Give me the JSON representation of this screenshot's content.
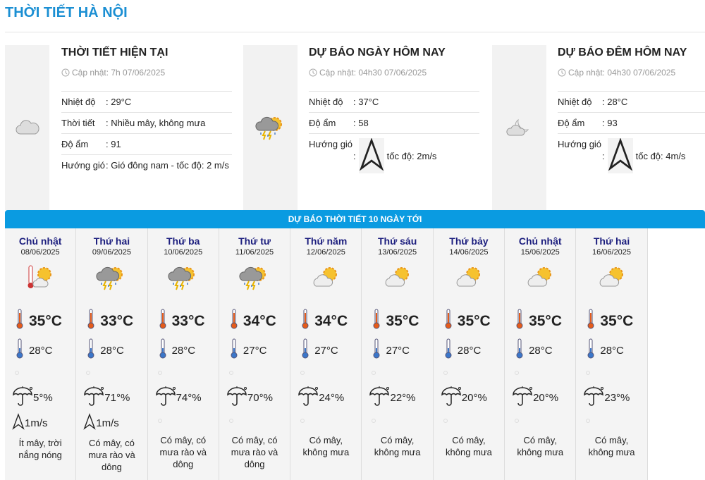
{
  "title": "THỜI TIẾT HÀ NỘI",
  "panels": [
    {
      "heading": "THỜI TIẾT HIỆN TẠI",
      "update": "Cập nhật: 7h 07/06/2025",
      "icon": "cloudy-icon",
      "rows": [
        {
          "k": "Nhiệt độ",
          "v": ": 29°C"
        },
        {
          "k": "Thời tiết",
          "v": ": Nhiều mây, không mưa"
        },
        {
          "k": "Độ ẩm",
          "v": ": 91"
        },
        {
          "k": "Hướng gió",
          "v": ": Gió đông nam - tốc độ: 2 m/s"
        }
      ]
    },
    {
      "heading": "DỰ BÁO NGÀY HÔM NAY",
      "update": "Cập nhật: 04h30 07/06/2025",
      "icon": "thunderstorm-icon",
      "rows": [
        {
          "k": "Nhiệt độ",
          "v": ": 37°C"
        },
        {
          "k": "Độ ẩm",
          "v": ": 58"
        },
        {
          "k": "Hướng gió",
          "v": ":",
          "speed": "tốc độ: 2m/s"
        }
      ]
    },
    {
      "heading": "DỰ BÁO ĐÊM HÔM NAY",
      "update": "Cập nhật: 04h30 07/06/2025",
      "icon": "night-cloudy-icon",
      "rows": [
        {
          "k": "Nhiệt độ",
          "v": ": 28°C"
        },
        {
          "k": "Độ ẩm",
          "v": ": 93"
        },
        {
          "k": "Hướng gió",
          "v": ":",
          "speed": "tốc độ: 4m/s"
        }
      ]
    }
  ],
  "forecast_title": "DỰ BÁO THỜI TIẾT 10 NGÀY TỚI",
  "days": [
    {
      "name": "Chủ nhật",
      "date": "08/06/2025",
      "icon": "hot-sun-icon",
      "hi": "35°C",
      "lo": "28°C",
      "rain": "5°%",
      "wind": "1m/s",
      "desc": "Ít mây, trời nắng nóng"
    },
    {
      "name": "Thứ hai",
      "date": "09/06/2025",
      "icon": "thunderstorm-icon",
      "hi": "33°C",
      "lo": "28°C",
      "rain": "71°%",
      "wind": "1m/s",
      "desc": "Có mây, có mưa rào và dông"
    },
    {
      "name": "Thứ ba",
      "date": "10/06/2025",
      "icon": "thunderstorm-icon",
      "hi": "33°C",
      "lo": "28°C",
      "rain": "74°%",
      "desc": "Có mây, có mưa rào và dông"
    },
    {
      "name": "Thứ tư",
      "date": "11/06/2025",
      "icon": "thunderstorm-icon",
      "hi": "34°C",
      "lo": "27°C",
      "rain": "70°%",
      "desc": "Có mây, có mưa rào và dông"
    },
    {
      "name": "Thứ năm",
      "date": "12/06/2025",
      "icon": "partly-cloudy-icon",
      "hi": "34°C",
      "lo": "27°C",
      "rain": "24°%",
      "desc": "Có mây, không mưa"
    },
    {
      "name": "Thứ sáu",
      "date": "13/06/2025",
      "icon": "partly-cloudy-icon",
      "hi": "35°C",
      "lo": "27°C",
      "rain": "22°%",
      "desc": "Có mây, không mưa"
    },
    {
      "name": "Thứ bảy",
      "date": "14/06/2025",
      "icon": "partly-cloudy-icon",
      "hi": "35°C",
      "lo": "28°C",
      "rain": "20°%",
      "desc": "Có mây, không mưa"
    },
    {
      "name": "Chủ nhật",
      "date": "15/06/2025",
      "icon": "partly-cloudy-icon",
      "hi": "35°C",
      "lo": "28°C",
      "rain": "20°%",
      "desc": "Có mây, không mưa"
    },
    {
      "name": "Thứ hai",
      "date": "16/06/2025",
      "icon": "partly-cloudy-icon",
      "hi": "35°C",
      "lo": "28°C",
      "rain": "23°%",
      "desc": "Có mây, không mưa"
    }
  ],
  "colors": {
    "accent": "#1b8fd3",
    "banner": "#0a9be1",
    "day_name": "#1c1e7e"
  }
}
